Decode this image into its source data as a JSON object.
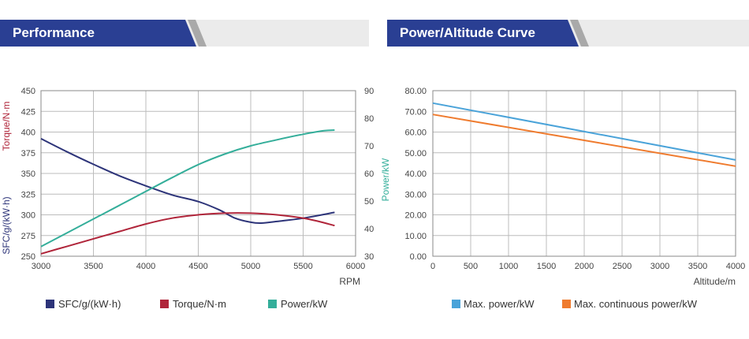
{
  "headers": {
    "left": "Performance",
    "right": "Power/Altitude Curve"
  },
  "colors": {
    "header_blue": "#2a3f93",
    "sfc": "#2d3479",
    "torque": "#b0253a",
    "power": "#34ae9a",
    "max_power": "#4aa3d9",
    "max_continuous": "#ef7b2e"
  },
  "chart_data": [
    {
      "type": "line",
      "xlabel": "RPM",
      "x_ticks": [
        "3000",
        "3500",
        "4000",
        "4500",
        "5000",
        "5500",
        "6000"
      ],
      "xlim": [
        3000,
        6000
      ],
      "y_left_labels": [
        "Torque/N·m",
        "SFC/g/(kW·h)"
      ],
      "y_left_ticks": [
        "250",
        "275",
        "300",
        "325",
        "350",
        "375",
        "400",
        "425",
        "450"
      ],
      "y_left_lim": [
        250,
        450
      ],
      "ylabel_right": "Power/kW",
      "y_right_ticks": [
        "30",
        "40",
        "50",
        "60",
        "70",
        "80",
        "90"
      ],
      "y_right_lim": [
        30,
        90
      ],
      "grid": true,
      "legend_position": "bottom",
      "series": [
        {
          "name": "SFC/g/(kW·h)",
          "axis": "left",
          "color": "#2d3479",
          "points": [
            [
              3000,
              392
            ],
            [
              3250,
              376
            ],
            [
              3500,
              361
            ],
            [
              3750,
              347
            ],
            [
              4000,
              335
            ],
            [
              4250,
              324
            ],
            [
              4500,
              316
            ],
            [
              4700,
              306
            ],
            [
              4850,
              296
            ],
            [
              5000,
              291
            ],
            [
              5100,
              290
            ],
            [
              5250,
              292
            ],
            [
              5500,
              296
            ],
            [
              5800,
              303
            ]
          ]
        },
        {
          "name": "Torque/N·m",
          "axis": "left",
          "color": "#b0253a",
          "points": [
            [
              3000,
              253
            ],
            [
              3250,
              262
            ],
            [
              3500,
              271
            ],
            [
              3750,
              280
            ],
            [
              4000,
              289
            ],
            [
              4250,
              296
            ],
            [
              4500,
              300
            ],
            [
              4750,
              302
            ],
            [
              5000,
              302
            ],
            [
              5250,
              300
            ],
            [
              5500,
              296
            ],
            [
              5650,
              292
            ],
            [
              5800,
              287
            ]
          ]
        },
        {
          "name": "Power/kW",
          "axis": "right",
          "color": "#34ae9a",
          "points": [
            [
              3000,
              33.5
            ],
            [
              3250,
              38.5
            ],
            [
              3500,
              43.5
            ],
            [
              3750,
              48.5
            ],
            [
              4000,
              53.5
            ],
            [
              4250,
              58.5
            ],
            [
              4500,
              63.2
            ],
            [
              4750,
              67
            ],
            [
              5000,
              70
            ],
            [
              5250,
              72.2
            ],
            [
              5500,
              74.2
            ],
            [
              5700,
              75.5
            ],
            [
              5800,
              75.7
            ]
          ]
        }
      ]
    },
    {
      "type": "line",
      "xlabel": "Altitude/m",
      "x_ticks": [
        "0",
        "500",
        "1000",
        "1500",
        "2000",
        "2500",
        "3000",
        "3500",
        "4000"
      ],
      "xlim": [
        0,
        4000
      ],
      "ylabel": "Power/kW",
      "y_ticks": [
        "0.00",
        "10.00",
        "20.00",
        "30.00",
        "40.00",
        "50.00",
        "60.00",
        "70.00",
        "80.00"
      ],
      "ylim": [
        0,
        80
      ],
      "grid": true,
      "legend_position": "bottom",
      "series": [
        {
          "name": "Max. power/kW",
          "color": "#4aa3d9",
          "points": [
            [
              0,
              74
            ],
            [
              4000,
              46.5
            ]
          ]
        },
        {
          "name": "Max. continuous power/kW",
          "color": "#ef7b2e",
          "points": [
            [
              0,
              68.5
            ],
            [
              4000,
              43.5
            ]
          ]
        }
      ]
    }
  ]
}
